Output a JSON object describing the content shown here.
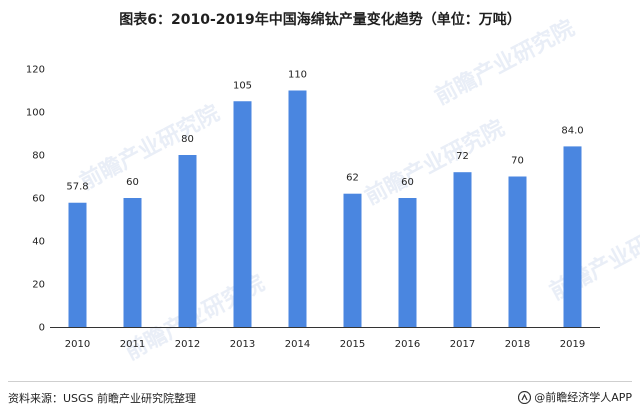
{
  "title": "图表6：2010-2019年中国海绵钛产量变化趋势（单位：万吨）",
  "source": "资料来源：USGS 前瞻产业研究院整理",
  "credit": "@前瞻经济学人APP",
  "watermark": "前瞻产业研究院",
  "colors": {
    "bar": "#4a86e0",
    "axis": "#333333"
  },
  "chart_data": {
    "type": "bar",
    "title": "图表6：2010-2019年中国海绵钛产量变化趋势（单位：万吨）",
    "categories": [
      "2010",
      "2011",
      "2012",
      "2013",
      "2014",
      "2015",
      "2016",
      "2017",
      "2018",
      "2019"
    ],
    "values": [
      57.8,
      60,
      80,
      105,
      110,
      62,
      60,
      72,
      70,
      84.0
    ],
    "value_labels": [
      "57.8",
      "60",
      "80",
      "105",
      "110",
      "62",
      "60",
      "72",
      "70",
      "84.0"
    ],
    "yticks": [
      "0",
      "20",
      "40",
      "60",
      "80",
      "100",
      "120"
    ],
    "ylim": [
      0,
      120
    ],
    "xlabel": "",
    "ylabel": "",
    "grid": false,
    "legend": "none"
  }
}
